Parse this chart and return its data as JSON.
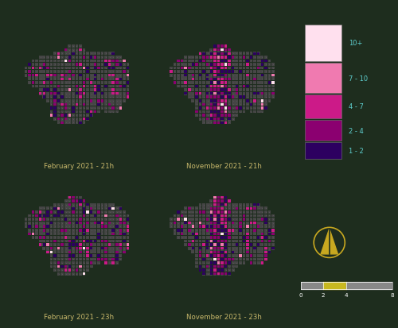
{
  "background_color": "#1e2d1e",
  "map_bg_color": "#454545",
  "grid_dot_color": "#606060",
  "title_color": "#c8b86b",
  "legend_label_color": "#5ecfcf",
  "colors": {
    "1-2": "#2d0060",
    "2-4": "#8b0070",
    "4-7": "#cc1a88",
    "7-10": "#f07ab0",
    "10+": "#ffe0ee"
  },
  "legend_labels": [
    "10+",
    "7 - 10",
    "4 - 7",
    "2 - 4",
    "1 - 2"
  ],
  "legend_colors": [
    "#ffe0ee",
    "#f07ab0",
    "#cc1a88",
    "#8b0070",
    "#2d0060"
  ],
  "subtitles": [
    "February 2021 - 21h",
    "November 2021 - 21h",
    "February 2021 - 23h",
    "November 2021 - 23h"
  ],
  "north_arrow_color": "#c8a820",
  "scale_bar_color": "#aaaaaa",
  "scale_ticks": [
    "0",
    "2",
    "4",
    "8"
  ],
  "grid_size": 38
}
